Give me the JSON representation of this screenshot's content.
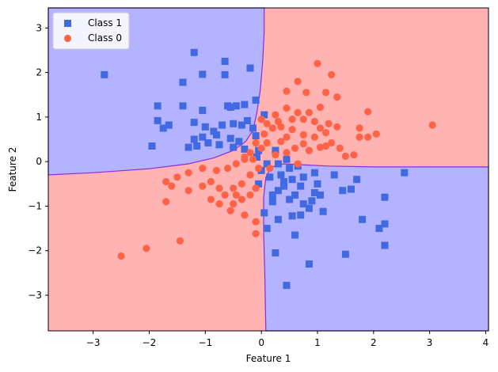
{
  "chart_data": {
    "type": "scatter",
    "title": "",
    "xlabel": "Feature 1",
    "ylabel": "Feature 2",
    "xlim": [
      -3.8,
      4.05
    ],
    "ylim": [
      -3.8,
      3.45
    ],
    "xticks": [
      -3,
      -2,
      -1,
      0,
      1,
      2,
      3,
      4
    ],
    "yticks": [
      -3,
      -2,
      -1,
      0,
      1,
      2,
      3
    ],
    "grid": false,
    "legend_position": "top-left",
    "background_regions": {
      "description": "decision regions",
      "class_1_color": "#b3b3ff",
      "class_0_color": "#ffb3b3",
      "boundary_color": "#8a2be2"
    },
    "series": [
      {
        "name": "Class 1",
        "marker": "square",
        "color": "#4169e1",
        "points": [
          [
            -2.8,
            1.95
          ],
          [
            -1.2,
            2.45
          ],
          [
            -0.65,
            2.25
          ],
          [
            -0.2,
            2.1
          ],
          [
            -1.4,
            1.78
          ],
          [
            -1.05,
            1.96
          ],
          [
            -0.65,
            1.95
          ],
          [
            -1.85,
            1.25
          ],
          [
            -1.4,
            1.25
          ],
          [
            -1.05,
            1.15
          ],
          [
            -0.6,
            1.25
          ],
          [
            -0.55,
            1.22
          ],
          [
            -0.3,
            1.28
          ],
          [
            -0.1,
            1.38
          ],
          [
            -0.45,
            1.25
          ],
          [
            -1.2,
            0.88
          ],
          [
            -1.0,
            0.78
          ],
          [
            -0.85,
            0.68
          ],
          [
            -0.7,
            0.82
          ],
          [
            -0.5,
            0.85
          ],
          [
            -0.35,
            0.82
          ],
          [
            -0.25,
            0.92
          ],
          [
            -0.15,
            0.75
          ],
          [
            -0.1,
            0.58
          ],
          [
            -1.85,
            0.92
          ],
          [
            -1.75,
            0.75
          ],
          [
            -1.65,
            0.82
          ],
          [
            -1.05,
            0.55
          ],
          [
            -0.8,
            0.6
          ],
          [
            -0.55,
            0.52
          ],
          [
            -0.4,
            0.45
          ],
          [
            -1.3,
            0.32
          ],
          [
            -1.15,
            0.35
          ],
          [
            -0.95,
            0.42
          ],
          [
            -0.75,
            0.38
          ],
          [
            -0.5,
            0.32
          ],
          [
            -0.3,
            0.28
          ],
          [
            -1.95,
            0.35
          ],
          [
            -1.2,
            0.5
          ],
          [
            -0.05,
            0.25
          ],
          [
            -0.08,
            0.1
          ],
          [
            0.05,
            1.05
          ],
          [
            0.1,
            -0.05
          ],
          [
            0.0,
            -0.2
          ],
          [
            -0.05,
            -0.5
          ],
          [
            0.05,
            -1.15
          ],
          [
            0.2,
            -0.9
          ],
          [
            0.3,
            -0.65
          ],
          [
            0.4,
            -0.55
          ],
          [
            0.55,
            -0.4
          ],
          [
            0.75,
            -0.35
          ],
          [
            0.95,
            -0.25
          ],
          [
            0.5,
            -0.15
          ],
          [
            0.65,
            -0.1
          ],
          [
            0.45,
            0.05
          ],
          [
            0.3,
            -0.05
          ],
          [
            0.25,
            0.25
          ],
          [
            0.35,
            -0.3
          ],
          [
            0.5,
            -0.85
          ],
          [
            0.7,
            -0.55
          ],
          [
            1.0,
            -0.5
          ],
          [
            1.05,
            -0.75
          ],
          [
            1.1,
            -1.12
          ],
          [
            1.3,
            -0.3
          ],
          [
            1.45,
            -0.65
          ],
          [
            1.6,
            -0.62
          ],
          [
            1.7,
            -0.4
          ],
          [
            2.2,
            -0.8
          ],
          [
            2.55,
            -0.25
          ],
          [
            1.8,
            -1.3
          ],
          [
            2.1,
            -1.5
          ],
          [
            2.2,
            -1.4
          ],
          [
            2.2,
            -1.88
          ],
          [
            0.3,
            -1.3
          ],
          [
            0.55,
            -1.22
          ],
          [
            0.75,
            -0.95
          ],
          [
            0.9,
            -0.88
          ],
          [
            0.85,
            -1.05
          ],
          [
            0.1,
            -1.5
          ],
          [
            0.6,
            -1.65
          ],
          [
            0.25,
            -2.05
          ],
          [
            0.85,
            -2.3
          ],
          [
            1.5,
            -2.08
          ],
          [
            0.45,
            -2.78
          ],
          [
            0.7,
            -1.2
          ],
          [
            0.95,
            -0.7
          ],
          [
            0.6,
            -0.75
          ],
          [
            0.15,
            -0.35
          ],
          [
            0.4,
            -0.45
          ],
          [
            0.2,
            -0.75
          ]
        ]
      },
      {
        "name": "Class 0",
        "marker": "circle",
        "color": "#ff6347",
        "points": [
          [
            1.0,
            2.2
          ],
          [
            1.25,
            1.95
          ],
          [
            0.65,
            1.8
          ],
          [
            0.45,
            1.58
          ],
          [
            0.8,
            1.55
          ],
          [
            1.15,
            1.55
          ],
          [
            1.35,
            1.45
          ],
          [
            0.45,
            1.2
          ],
          [
            0.65,
            1.1
          ],
          [
            0.85,
            1.1
          ],
          [
            1.05,
            1.22
          ],
          [
            0.25,
            1.05
          ],
          [
            0.0,
            0.95
          ],
          [
            0.1,
            0.85
          ],
          [
            0.2,
            0.75
          ],
          [
            0.35,
            0.78
          ],
          [
            0.55,
            0.72
          ],
          [
            0.75,
            0.95
          ],
          [
            0.95,
            0.9
          ],
          [
            1.05,
            0.75
          ],
          [
            1.2,
            0.85
          ],
          [
            1.35,
            0.78
          ],
          [
            0.45,
            0.55
          ],
          [
            0.75,
            0.6
          ],
          [
            0.95,
            0.55
          ],
          [
            1.15,
            0.65
          ],
          [
            1.25,
            0.42
          ],
          [
            1.05,
            0.32
          ],
          [
            1.15,
            0.35
          ],
          [
            0.85,
            0.25
          ],
          [
            0.6,
            0.3
          ],
          [
            0.45,
            0.2
          ],
          [
            0.25,
            0.15
          ],
          [
            0.1,
            0.42
          ],
          [
            0.05,
            0.62
          ],
          [
            -0.1,
            0.42
          ],
          [
            -0.2,
            0.2
          ],
          [
            -0.3,
            0.1
          ],
          [
            -0.45,
            -0.05
          ],
          [
            -0.6,
            -0.15
          ],
          [
            -0.8,
            -0.2
          ],
          [
            -1.05,
            -0.15
          ],
          [
            -1.3,
            -0.25
          ],
          [
            -1.5,
            -0.35
          ],
          [
            -1.7,
            -0.45
          ],
          [
            -1.6,
            -0.55
          ],
          [
            -1.3,
            -0.65
          ],
          [
            -1.05,
            -0.55
          ],
          [
            -0.9,
            -0.45
          ],
          [
            -0.75,
            -0.6
          ],
          [
            -0.5,
            -0.6
          ],
          [
            -0.35,
            -0.5
          ],
          [
            -0.2,
            -0.3
          ],
          [
            -0.05,
            -0.15
          ],
          [
            -0.45,
            -0.75
          ],
          [
            -0.65,
            -0.75
          ],
          [
            -0.9,
            -0.85
          ],
          [
            -0.75,
            -0.95
          ],
          [
            -0.5,
            -0.95
          ],
          [
            -0.35,
            -0.85
          ],
          [
            -0.2,
            -0.75
          ],
          [
            -0.1,
            -0.6
          ],
          [
            -0.55,
            -1.1
          ],
          [
            -0.3,
            -1.2
          ],
          [
            -0.1,
            -1.35
          ],
          [
            -0.1,
            -1.62
          ],
          [
            -1.7,
            -0.9
          ],
          [
            -1.45,
            -1.78
          ],
          [
            -2.05,
            -1.95
          ],
          [
            -2.5,
            -2.12
          ],
          [
            1.5,
            0.12
          ],
          [
            1.65,
            0.15
          ],
          [
            1.75,
            0.55
          ],
          [
            1.9,
            0.55
          ],
          [
            1.75,
            0.75
          ],
          [
            2.05,
            0.62
          ],
          [
            1.9,
            1.12
          ],
          [
            3.05,
            0.82
          ],
          [
            0.65,
            -0.05
          ],
          [
            0.35,
            0.45
          ],
          [
            0.55,
            0.95
          ],
          [
            0.0,
            0.3
          ],
          [
            -0.3,
            0.05
          ],
          [
            0.15,
            -0.15
          ],
          [
            0.3,
            0.9
          ],
          [
            1.4,
            0.3
          ],
          [
            0.75,
            0.4
          ],
          [
            -0.15,
            0.05
          ]
        ]
      }
    ],
    "legend": [
      {
        "label": "Class 1",
        "marker": "square",
        "color": "#4169e1"
      },
      {
        "label": "Class 0",
        "marker": "circle",
        "color": "#ff6347"
      }
    ]
  }
}
